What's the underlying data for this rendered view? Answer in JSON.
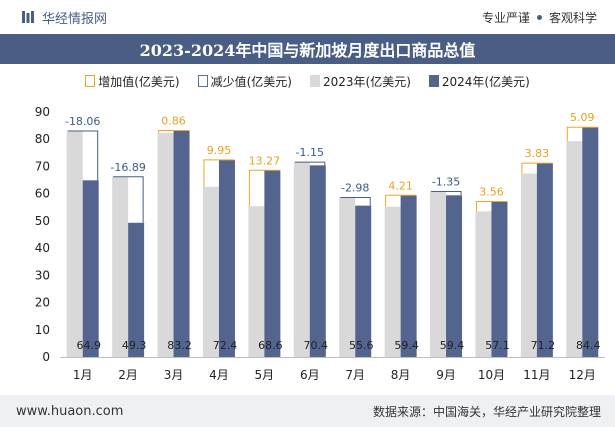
{
  "header": {
    "brand": "华经情报网",
    "slogan_left": "专业严谨",
    "slogan_right": "客观科学"
  },
  "chart_data": {
    "type": "bar",
    "title": "2023-2024年中国与新加坡月度出口商品总值",
    "categories": [
      "1月",
      "2月",
      "3月",
      "4月",
      "5月",
      "6月",
      "7月",
      "8月",
      "9月",
      "10月",
      "11月",
      "12月"
    ],
    "series": [
      {
        "name": "2023年(亿美元)",
        "color": "#d9d9d9",
        "values": [
          83.0,
          66.2,
          82.4,
          62.5,
          55.4,
          71.6,
          58.6,
          55.2,
          60.8,
          53.5,
          67.4,
          79.3
        ]
      },
      {
        "name": "2024年(亿美元)",
        "color": "#53658f",
        "values": [
          64.9,
          49.3,
          83.2,
          72.4,
          68.6,
          70.4,
          55.6,
          59.4,
          59.4,
          57.1,
          71.2,
          84.4
        ]
      }
    ],
    "changes": [
      "-18.06",
      "-16.89",
      "0.86",
      "9.95",
      "13.27",
      "-1.15",
      "-2.98",
      "4.21",
      "-1.35",
      "3.56",
      "3.83",
      "5.09"
    ],
    "legend": [
      "增加值(亿美元)",
      "减少值(亿美元)",
      "2023年(亿美元)",
      "2024年(亿美元)"
    ],
    "increase_color": "#f0a520",
    "decrease_color": "#4a5e85",
    "ylim": [
      0,
      90
    ],
    "yticks": [
      0,
      10,
      20,
      30,
      40,
      50,
      60,
      70,
      80,
      90
    ]
  },
  "footer": {
    "website": "www.huaon.com",
    "source": "数据来源：中国海关，华经产业研究院整理"
  }
}
